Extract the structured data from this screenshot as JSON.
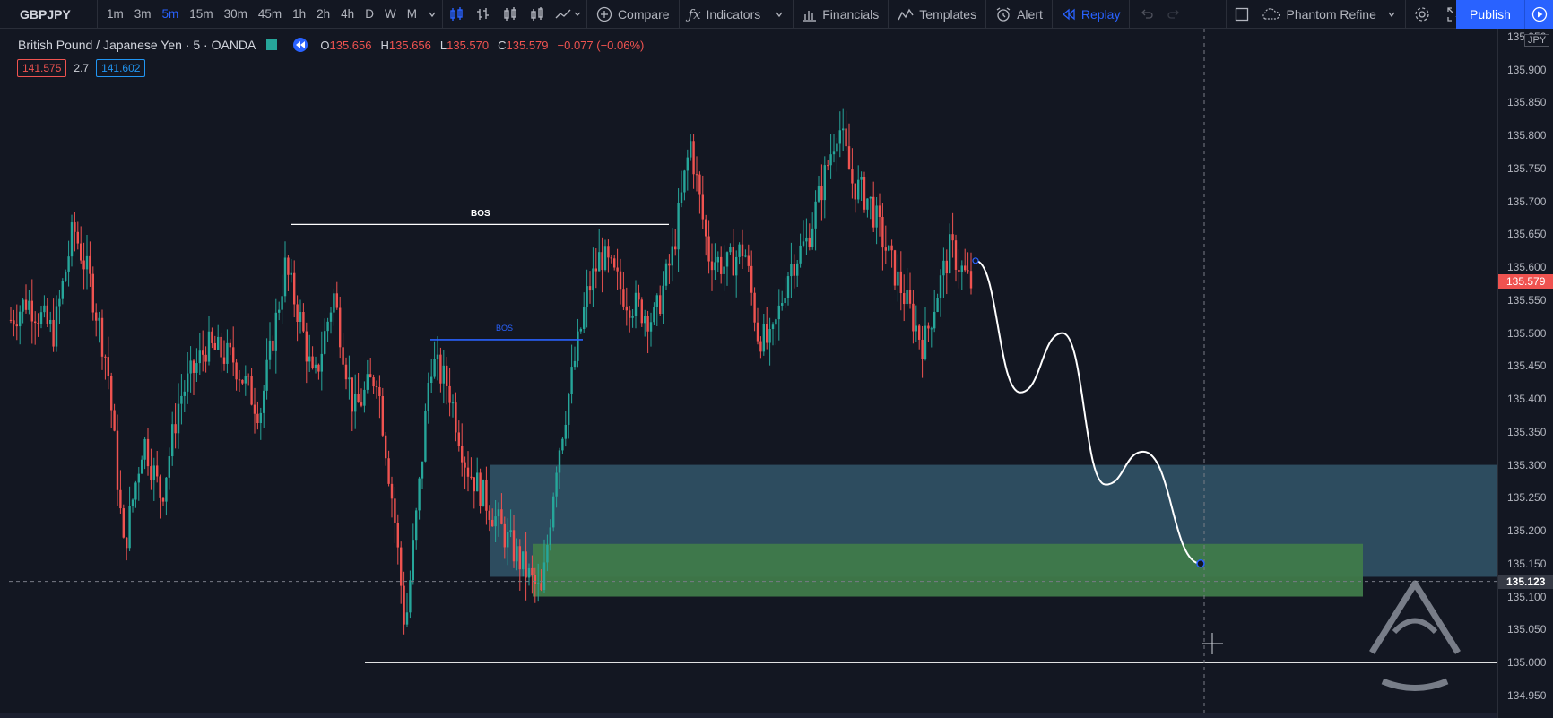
{
  "toolbar": {
    "symbol": "GBPJPY",
    "intervals": [
      "1m",
      "3m",
      "5m",
      "15m",
      "30m",
      "45m",
      "1h",
      "2h",
      "4h",
      "D",
      "W",
      "M"
    ],
    "active_interval": "5m",
    "compare": "Compare",
    "indicators": "Indicators",
    "financials": "Financials",
    "templates": "Templates",
    "alert": "Alert",
    "replay": "Replay",
    "layout_name": "Phantom Refine",
    "publish": "Publish"
  },
  "legend": {
    "title": "British Pound / Japanese Yen · 5 · OANDA",
    "open_k": "O",
    "open": "135.656",
    "high_k": "H",
    "high": "135.656",
    "low_k": "L",
    "low": "135.570",
    "close_k": "C",
    "close": "135.579",
    "change": "−0.077 (−0.06%)",
    "bid": "141.575",
    "spread": "2.7",
    "ask": "141.602"
  },
  "annotations": {
    "bos": "BOS",
    "bos2": "BOS"
  },
  "price_axis": {
    "currency": "JPY",
    "ticks": [
      "135.950",
      "135.900",
      "135.850",
      "135.800",
      "135.750",
      "135.700",
      "135.650",
      "135.600",
      "135.550",
      "135.500",
      "135.450",
      "135.400",
      "135.350",
      "135.300",
      "135.250",
      "135.200",
      "135.150",
      "135.100",
      "135.050",
      "135.000",
      "134.950"
    ],
    "current_price": "135.579",
    "crosshair_price": "135.123"
  },
  "chart_data": {
    "type": "candlestick",
    "symbol": "GBPJPY",
    "timeframe": "5",
    "ylim": [
      134.95,
      135.95
    ],
    "current_price": 135.579,
    "zones": [
      {
        "color": "#2e4f63",
        "price_top": 135.3,
        "price_bottom": 135.13
      },
      {
        "color": "#3f7a4a",
        "price_top": 135.18,
        "price_bottom": 135.1
      }
    ],
    "levels": [
      {
        "label": "BOS",
        "price": 135.665
      },
      {
        "label": "BOS",
        "price": 135.49
      },
      {
        "price": 135.0
      }
    ],
    "projection_path_prices": [
      135.61,
      135.41,
      135.5,
      135.27,
      135.32,
      135.15
    ]
  }
}
